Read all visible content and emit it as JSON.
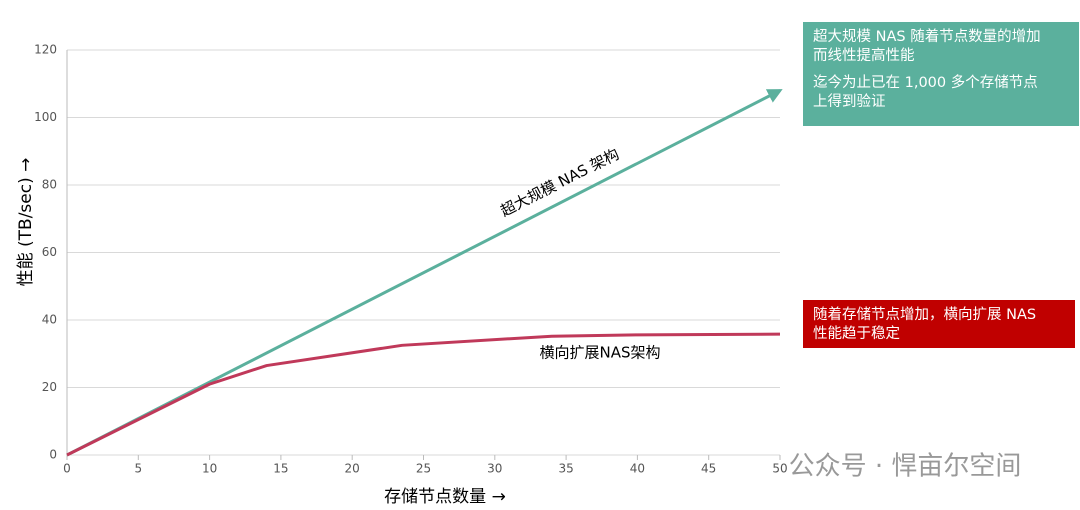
{
  "chart_data": {
    "type": "line",
    "xlabel": "存储节点数量 →",
    "ylabel": "性能 (TB/sec) →",
    "xlim": [
      0,
      50
    ],
    "xticks": [
      0,
      5,
      10,
      15,
      20,
      25,
      30,
      35,
      40,
      45,
      50
    ],
    "ylim": [
      0,
      120
    ],
    "yticks": [
      0,
      20,
      40,
      60,
      80,
      100,
      120
    ],
    "grid": true,
    "series": [
      {
        "name": "超大规模 NAS 架构",
        "color": "#5bb09d",
        "x": [
          0,
          50
        ],
        "values": [
          0,
          108
        ]
      },
      {
        "name": "横向扩展NAS架构",
        "color": "#c0395a",
        "x": [
          0,
          10,
          14,
          23.5,
          34,
          40,
          50
        ],
        "values": [
          0,
          21,
          26.5,
          32.5,
          35.2,
          35.6,
          35.8
        ]
      }
    ],
    "annotations": [
      {
        "lines": [
          "超大规模 NAS 随着节点数量的增加",
          "而线性提高性能"
        ]
      },
      {
        "lines": [
          "迄今为止已在 1,000 多个存储节点",
          "上得到验证"
        ]
      },
      {
        "lines": [
          "随着存储节点增加，横向扩展 NAS",
          "性能趋于稳定"
        ]
      }
    ],
    "watermark": "公众号 · 悍亩尔空间"
  }
}
